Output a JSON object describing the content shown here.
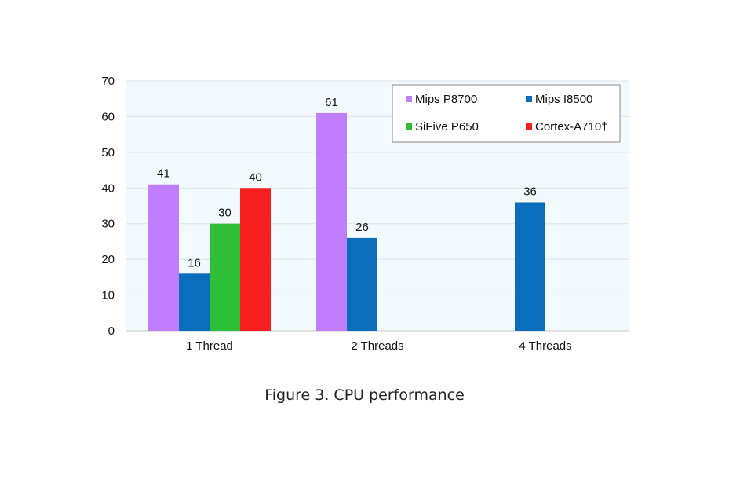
{
  "caption": "Figure 3. CPU performance",
  "chart_data": {
    "type": "bar",
    "categories": [
      "1 Thread",
      "2 Threads",
      "4 Threads"
    ],
    "series": [
      {
        "name": "Mips P8700",
        "color": "#c07efc",
        "values": [
          41,
          61,
          null
        ]
      },
      {
        "name": "Mips I8500",
        "color": "#0a6ebd",
        "values": [
          16,
          26,
          36
        ]
      },
      {
        "name": "SiFive P650",
        "color": "#2fbe37",
        "values": [
          30,
          null,
          null
        ]
      },
      {
        "name": "Cortex-A710†",
        "color": "#fb2020",
        "values": [
          40,
          null,
          null
        ]
      }
    ],
    "ylim": [
      0,
      70
    ],
    "yticks": [
      0,
      10,
      20,
      30,
      40,
      50,
      60,
      70
    ],
    "grid": true,
    "legend_position": "top-right",
    "data_labels": true,
    "colors": {
      "plot_background": "#f2fafd",
      "grid": "#d6e4ea"
    }
  }
}
